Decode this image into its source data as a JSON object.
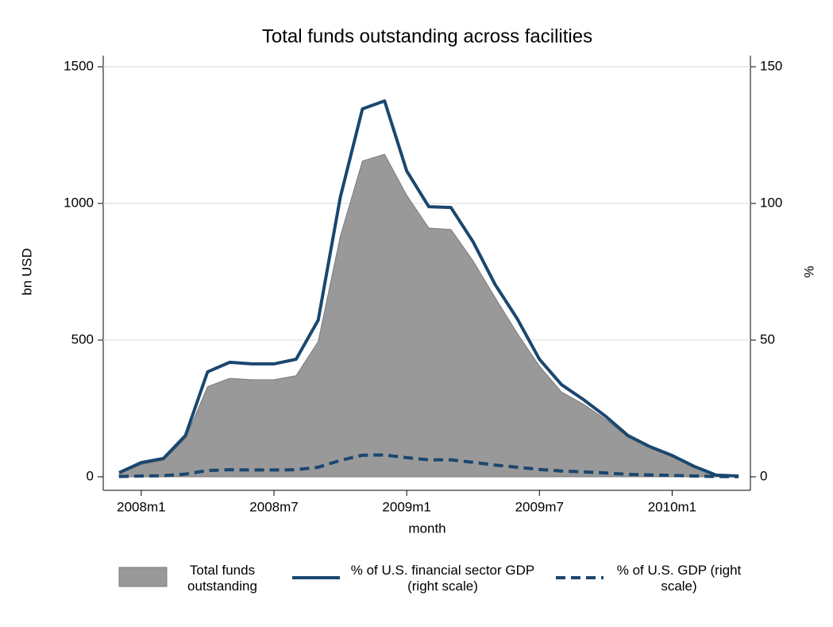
{
  "chart_data": {
    "type": "area",
    "title": "Total funds outstanding across facilities",
    "x_label": "month",
    "y_label": "bn USD",
    "y2_label": "%",
    "x": [
      "2007m12",
      "2008m1",
      "2008m2",
      "2008m3",
      "2008m4",
      "2008m5",
      "2008m6",
      "2008m7",
      "2008m8",
      "2008m9",
      "2008m10",
      "2008m11",
      "2008m12",
      "2009m1",
      "2009m2",
      "2009m3",
      "2009m4",
      "2009m5",
      "2009m6",
      "2009m7",
      "2009m8",
      "2009m9",
      "2009m10",
      "2009m11",
      "2009m12",
      "2010m1",
      "2010m2",
      "2010m3",
      "2010m4"
    ],
    "xticks": [
      "2008m1",
      "2008m7",
      "2009m1",
      "2009m7",
      "2010m1"
    ],
    "ylim": [
      0,
      1500
    ],
    "yticks": [
      0,
      500,
      1000,
      1500
    ],
    "y2lim": [
      0,
      150
    ],
    "y2ticks": [
      0,
      50,
      100,
      150
    ],
    "grid": true,
    "legend": "bottom",
    "series": [
      {
        "name": "Total funds outstanding",
        "type": "area",
        "color": "#999999",
        "values": [
          10,
          45,
          60,
          140,
          330,
          360,
          355,
          355,
          370,
          495,
          880,
          1155,
          1180,
          1030,
          910,
          905,
          790,
          655,
          525,
          405,
          310,
          265,
          210,
          145,
          110,
          75,
          35,
          8,
          3
        ]
      },
      {
        "name": "% of U.S. financial sector GDP (right scale)",
        "type": "line",
        "axis": "y2",
        "color": "#1a476f",
        "dash": false,
        "values": [
          1.5,
          5.2,
          6.7,
          15.1,
          38.4,
          41.9,
          41.3,
          41.3,
          43,
          57.3,
          102.3,
          134.6,
          137.5,
          111.9,
          98.8,
          98.5,
          86,
          70.3,
          57.8,
          43,
          33.7,
          28.2,
          22.1,
          15.1,
          11,
          7.8,
          3.8,
          0.6,
          0.3
        ]
      },
      {
        "name": "% of U.S. GDP (right scale)",
        "type": "line",
        "axis": "y2",
        "color": "#1a476f",
        "dash": true,
        "values": [
          0.1,
          0.3,
          0.4,
          1,
          2.3,
          2.6,
          2.5,
          2.5,
          2.6,
          3.5,
          6,
          7.9,
          8,
          7,
          6.2,
          6.2,
          5.3,
          4.3,
          3.5,
          2.7,
          2.1,
          1.8,
          1.4,
          0.9,
          0.7,
          0.5,
          0.3,
          0.1,
          0.05
        ]
      }
    ]
  }
}
